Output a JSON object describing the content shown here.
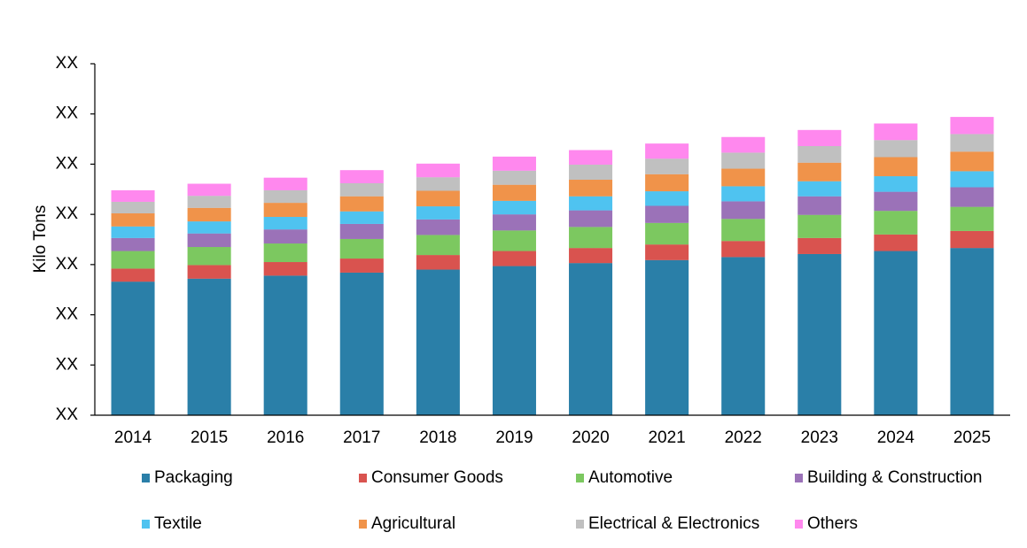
{
  "chart_data": {
    "type": "stacked-bar",
    "y_label": "Kilo Tons",
    "categories": [
      "2014",
      "2015",
      "2016",
      "2017",
      "2018",
      "2019",
      "2020",
      "2021",
      "2022",
      "2023",
      "2024",
      "2025"
    ],
    "ylim": [
      0,
      7
    ],
    "yticks": [
      {
        "value": 0,
        "label": "XX"
      },
      {
        "value": 1,
        "label": "XX"
      },
      {
        "value": 2,
        "label": "XX"
      },
      {
        "value": 3,
        "label": "XX"
      },
      {
        "value": 4,
        "label": "XX"
      },
      {
        "value": 5,
        "label": "XX"
      },
      {
        "value": 6,
        "label": "XX"
      },
      {
        "value": 7,
        "label": "XX"
      }
    ],
    "series": [
      {
        "name": "Packaging",
        "color": "#2a7fa8",
        "values": [
          2.66,
          2.72,
          2.78,
          2.84,
          2.9,
          2.97,
          3.03,
          3.09,
          3.15,
          3.21,
          3.27,
          3.33
        ]
      },
      {
        "name": "Consumer Goods",
        "color": "#d9534f",
        "values": [
          0.26,
          0.27,
          0.27,
          0.28,
          0.29,
          0.3,
          0.3,
          0.31,
          0.32,
          0.32,
          0.33,
          0.34
        ]
      },
      {
        "name": "Automotive",
        "color": "#7cc860",
        "values": [
          0.35,
          0.36,
          0.37,
          0.39,
          0.4,
          0.41,
          0.42,
          0.43,
          0.44,
          0.46,
          0.47,
          0.48
        ]
      },
      {
        "name": "Building & Construction",
        "color": "#9b72b8",
        "values": [
          0.26,
          0.27,
          0.28,
          0.3,
          0.31,
          0.32,
          0.33,
          0.34,
          0.35,
          0.37,
          0.38,
          0.39
        ]
      },
      {
        "name": "Textile",
        "color": "#4fc3f0",
        "values": [
          0.23,
          0.24,
          0.25,
          0.25,
          0.26,
          0.27,
          0.28,
          0.29,
          0.3,
          0.3,
          0.31,
          0.32
        ]
      },
      {
        "name": "Agricultural",
        "color": "#f0934a",
        "values": [
          0.26,
          0.27,
          0.28,
          0.3,
          0.31,
          0.32,
          0.33,
          0.34,
          0.35,
          0.37,
          0.38,
          0.39
        ]
      },
      {
        "name": "Electrical & Electronics",
        "color": "#c0c0c0",
        "values": [
          0.23,
          0.24,
          0.25,
          0.26,
          0.27,
          0.28,
          0.3,
          0.31,
          0.32,
          0.33,
          0.34,
          0.35
        ]
      },
      {
        "name": "Others",
        "color": "#ff88ee",
        "values": [
          0.23,
          0.24,
          0.25,
          0.26,
          0.27,
          0.28,
          0.29,
          0.3,
          0.31,
          0.32,
          0.33,
          0.34
        ]
      }
    ]
  }
}
